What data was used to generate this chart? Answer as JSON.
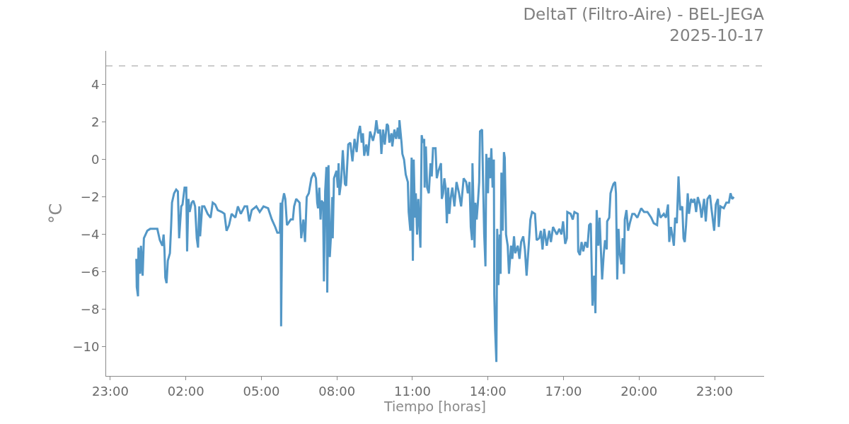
{
  "chart_data": {
    "type": "line",
    "title": "DeltaT (Filtro-Aire) - BEL-JEGA\n2025-10-17",
    "xlabel": "Tiempo [horas]",
    "ylabel": "°C",
    "x": [
      "2025-10-17T00:02",
      "2025-10-17T00:03",
      "2025-10-17T00:06",
      "2025-10-17T00:07",
      "2025-10-17T00:11",
      "2025-10-17T00:13",
      "2025-10-17T00:17",
      "2025-10-17T00:20",
      "2025-10-17T00:24",
      "2025-10-17T00:28",
      "2025-10-17T00:35",
      "2025-10-17T00:44",
      "2025-10-17T00:52",
      "2025-10-17T00:58",
      "2025-10-17T01:04",
      "2025-10-17T01:07",
      "2025-10-17T01:09",
      "2025-10-17T01:11",
      "2025-10-17T01:14",
      "2025-10-17T01:17",
      "2025-10-17T01:22",
      "2025-10-17T01:25",
      "2025-10-17T01:27",
      "2025-10-17T01:32",
      "2025-10-17T01:37",
      "2025-10-17T01:41",
      "2025-10-17T01:44",
      "2025-10-17T01:49",
      "2025-10-17T01:52",
      "2025-10-17T01:57",
      "2025-10-17T02:01",
      "2025-10-17T02:03",
      "2025-10-17T02:06",
      "2025-10-17T02:09",
      "2025-10-17T02:14",
      "2025-10-17T02:18",
      "2025-10-17T02:22",
      "2025-10-17T02:26",
      "2025-10-17T02:29",
      "2025-10-17T02:32",
      "2025-10-17T02:34",
      "2025-10-17T02:39",
      "2025-10-17T02:44",
      "2025-10-17T02:52",
      "2025-10-17T02:59",
      "2025-10-17T03:04",
      "2025-10-17T03:10",
      "2025-10-17T03:16",
      "2025-10-17T03:26",
      "2025-10-17T03:32",
      "2025-10-17T03:37",
      "2025-10-17T03:43",
      "2025-10-17T03:49",
      "2025-10-17T03:58",
      "2025-10-17T04:04",
      "2025-10-17T04:11",
      "2025-10-17T04:20",
      "2025-10-17T04:26",
      "2025-10-17T04:31",
      "2025-10-17T04:37",
      "2025-10-17T04:48",
      "2025-10-17T04:56",
      "2025-10-17T05:05",
      "2025-10-17T05:16",
      "2025-10-17T05:25",
      "2025-10-17T05:33",
      "2025-10-17T05:38",
      "2025-10-17T05:44",
      "2025-10-17T05:46",
      "2025-10-17T05:47",
      "2025-10-17T05:50",
      "2025-10-17T05:54",
      "2025-10-17T05:57",
      "2025-10-17T06:01",
      "2025-10-17T06:10",
      "2025-10-17T06:15",
      "2025-10-17T06:18",
      "2025-10-17T06:23",
      "2025-10-17T06:31",
      "2025-10-17T06:35",
      "2025-10-17T06:40",
      "2025-10-17T06:44",
      "2025-10-17T06:48",
      "2025-10-17T06:53",
      "2025-10-17T06:59",
      "2025-10-17T07:05",
      "2025-10-17T07:10",
      "2025-10-17T07:13",
      "2025-10-17T07:15",
      "2025-10-17T07:18",
      "2025-10-17T07:21",
      "2025-10-17T07:23",
      "2025-10-17T07:27",
      "2025-10-17T07:29",
      "2025-10-17T07:32",
      "2025-10-17T07:35",
      "2025-10-17T07:37",
      "2025-10-17T07:40",
      "2025-10-17T07:43",
      "2025-10-17T07:46",
      "2025-10-17T07:49",
      "2025-10-17T07:50",
      "2025-10-17T07:53",
      "2025-10-17T07:59",
      "2025-10-17T08:02",
      "2025-10-17T08:04",
      "2025-10-17T08:06",
      "2025-10-17T08:10",
      "2025-10-17T08:14",
      "2025-10-17T08:19",
      "2025-10-17T08:22",
      "2025-10-17T08:27",
      "2025-10-17T08:32",
      "2025-10-17T08:37",
      "2025-10-17T08:42",
      "2025-10-17T08:47",
      "2025-10-17T08:51",
      "2025-10-17T08:55",
      "2025-10-17T08:59",
      "2025-10-17T09:02",
      "2025-10-17T09:05",
      "2025-10-17T09:10",
      "2025-10-17T09:14",
      "2025-10-17T09:19",
      "2025-10-17T09:26",
      "2025-10-17T09:31",
      "2025-10-17T09:34",
      "2025-10-17T09:38",
      "2025-10-17T09:43",
      "2025-10-17T09:46",
      "2025-10-17T09:50",
      "2025-10-17T09:54",
      "2025-10-17T09:59",
      "2025-10-17T10:02",
      "2025-10-17T10:05",
      "2025-10-17T10:10",
      "2025-10-17T10:12",
      "2025-10-17T10:17",
      "2025-10-17T10:21",
      "2025-10-17T10:25",
      "2025-10-17T10:28",
      "2025-10-17T10:29",
      "2025-10-17T10:34",
      "2025-10-17T10:36",
      "2025-10-17T10:40",
      "2025-10-17T10:44",
      "2025-10-17T10:49",
      "2025-10-17T10:51",
      "2025-10-17T10:55",
      "2025-10-17T10:58",
      "2025-10-17T11:01",
      "2025-10-17T11:03",
      "2025-10-17T11:06",
      "2025-10-17T11:08",
      "2025-10-17T11:11",
      "2025-10-17T11:14",
      "2025-10-17T11:19",
      "2025-10-17T11:22",
      "2025-10-17T11:25",
      "2025-10-17T11:28",
      "2025-10-17T11:29",
      "2025-10-17T11:32",
      "2025-10-17T11:35",
      "2025-10-17T11:39",
      "2025-10-17T11:43",
      "2025-10-17T11:46",
      "2025-10-17T11:49",
      "2025-10-17T11:55",
      "2025-10-17T11:58",
      "2025-10-17T12:02",
      "2025-10-17T12:08",
      "2025-10-17T12:10",
      "2025-10-17T12:13",
      "2025-10-17T12:16",
      "2025-10-17T12:19",
      "2025-10-17T12:22",
      "2025-10-17T12:25",
      "2025-10-17T12:28",
      "2025-10-17T12:31",
      "2025-10-17T12:35",
      "2025-10-17T12:40",
      "2025-10-17T12:45",
      "2025-10-17T12:51",
      "2025-10-17T12:56",
      "2025-10-17T13:02",
      "2025-10-17T13:08",
      "2025-10-17T13:12",
      "2025-10-17T13:16",
      "2025-10-17T13:19",
      "2025-10-17T13:22",
      "2025-10-17T13:23",
      "2025-10-17T13:28",
      "2025-10-17T13:30",
      "2025-10-17T13:33",
      "2025-10-17T13:36",
      "2025-10-17T13:39",
      "2025-10-17T13:41",
      "2025-10-17T13:46",
      "2025-10-17T13:48",
      "2025-10-17T13:51",
      "2025-10-17T13:54",
      "2025-10-17T13:56",
      "2025-10-17T14:00",
      "2025-10-17T14:02",
      "2025-10-17T14:05",
      "2025-10-17T14:08",
      "2025-10-17T14:11",
      "2025-10-17T14:14",
      "2025-10-17T14:15",
      "2025-10-17T14:17",
      "2025-10-17T14:20",
      "2025-10-17T14:22",
      "2025-10-17T14:25",
      "2025-10-17T14:28",
      "2025-10-17T14:30",
      "2025-10-17T14:32",
      "2025-10-17T14:35",
      "2025-10-17T14:38",
      "2025-10-17T14:40",
      "2025-10-17T14:43",
      "2025-10-17T14:47",
      "2025-10-17T14:50",
      "2025-10-17T14:55",
      "2025-10-17T14:58",
      "2025-10-17T15:02",
      "2025-10-17T15:05",
      "2025-10-17T15:11",
      "2025-10-17T15:15",
      "2025-10-17T15:19",
      "2025-10-17T15:24",
      "2025-10-17T15:28",
      "2025-10-17T15:32",
      "2025-10-17T15:37",
      "2025-10-17T15:41",
      "2025-10-17T15:45",
      "2025-10-17T15:52",
      "2025-10-17T15:56",
      "2025-10-17T16:02",
      "2025-10-17T16:06",
      "2025-10-17T16:10",
      "2025-10-17T16:14",
      "2025-10-17T16:20",
      "2025-10-17T16:26",
      "2025-10-17T16:30",
      "2025-10-17T16:35",
      "2025-10-17T16:44",
      "2025-10-17T16:50",
      "2025-10-17T16:55",
      "2025-10-17T16:59",
      "2025-10-17T17:04",
      "2025-10-17T17:08",
      "2025-10-17T17:09",
      "2025-10-17T17:17",
      "2025-10-17T17:22",
      "2025-10-17T17:26",
      "2025-10-17T17:34",
      "2025-10-17T17:35",
      "2025-10-17T17:39",
      "2025-10-17T17:43",
      "2025-10-17T17:47",
      "2025-10-17T17:52",
      "2025-10-17T17:57",
      "2025-10-17T18:01",
      "2025-10-17T18:05",
      "2025-10-17T18:09",
      "2025-10-17T18:13",
      "2025-10-17T18:16",
      "2025-10-17T18:19",
      "2025-10-17T18:23",
      "2025-10-17T18:26",
      "2025-10-17T18:29",
      "2025-10-17T18:32",
      "2025-10-17T18:36",
      "2025-10-17T18:39",
      "2025-10-17T18:43",
      "2025-10-17T18:44",
      "2025-10-17T18:49",
      "2025-10-17T18:52",
      "2025-10-17T18:56",
      "2025-10-17T18:59",
      "2025-10-17T19:03",
      "2025-10-17T19:05",
      "2025-10-17T19:08",
      "2025-10-17T19:11",
      "2025-10-17T19:14",
      "2025-10-17T19:18",
      "2025-10-17T19:21",
      "2025-10-17T19:24",
      "2025-10-17T19:26",
      "2025-10-17T19:30",
      "2025-10-17T19:34",
      "2025-10-17T19:38",
      "2025-10-17T19:44",
      "2025-10-17T19:49",
      "2025-10-17T19:56",
      "2025-10-17T20:05",
      "2025-10-17T20:12",
      "2025-10-17T20:20",
      "2025-10-17T20:29",
      "2025-10-17T20:35",
      "2025-10-17T20:43",
      "2025-10-17T20:46",
      "2025-10-17T20:51",
      "2025-10-17T20:59",
      "2025-10-17T21:04",
      "2025-10-17T21:09",
      "2025-10-17T21:12",
      "2025-10-17T21:16",
      "2025-10-17T21:19",
      "2025-10-17T21:23",
      "2025-10-17T21:26",
      "2025-10-17T21:30",
      "2025-10-17T21:34",
      "2025-10-17T21:38",
      "2025-10-17T21:43",
      "2025-10-17T21:46",
      "2025-10-17T21:49",
      "2025-10-17T21:52",
      "2025-10-17T21:56",
      "2025-10-17T21:59",
      "2025-10-17T22:04",
      "2025-10-17T22:08",
      "2025-10-17T22:12",
      "2025-10-17T22:16",
      "2025-10-17T22:20",
      "2025-10-17T22:25",
      "2025-10-17T22:29",
      "2025-10-17T22:35",
      "2025-10-17T22:39",
      "2025-10-17T22:43",
      "2025-10-17T22:49",
      "2025-10-17T22:53",
      "2025-10-17T22:59",
      "2025-10-17T23:03",
      "2025-10-17T23:08",
      "2025-10-17T23:10",
      "2025-10-17T23:14",
      "2025-10-17T23:22",
      "2025-10-17T23:28",
      "2025-10-17T23:34",
      "2025-10-17T23:38",
      "2025-10-17T23:42",
      "2025-10-17T23:46"
    ],
    "series": [
      {
        "color": "#4a92c4",
        "values": [
          -5.3,
          -6.8,
          -7.3,
          -4.7,
          -6.1,
          -4.6,
          -6.2,
          -4.2,
          -4.0,
          -3.8,
          -3.7,
          -3.7,
          -3.7,
          -4.3,
          -4.6,
          -4.0,
          -4.8,
          -6.3,
          -6.6,
          -5.4,
          -5.0,
          -3.5,
          -2.3,
          -1.8,
          -1.6,
          -1.7,
          -4.2,
          -2.5,
          -2.4,
          -1.5,
          -1.5,
          -4.9,
          -2.1,
          -2.8,
          -2.3,
          -2.2,
          -2.5,
          -4.2,
          -4.7,
          -2.5,
          -4.1,
          -2.5,
          -2.5,
          -2.9,
          -3.1,
          -2.3,
          -2.4,
          -2.7,
          -2.8,
          -2.9,
          -3.8,
          -3.5,
          -2.9,
          -3.1,
          -2.5,
          -2.9,
          -2.5,
          -2.5,
          -3.3,
          -2.7,
          -2.5,
          -2.8,
          -2.5,
          -2.6,
          -3.2,
          -3.6,
          -3.9,
          -3.9,
          -2.3,
          -8.9,
          -2.3,
          -1.8,
          -2.1,
          -3.5,
          -3.2,
          -3.2,
          -2.5,
          -2.1,
          -2.3,
          -4.2,
          -3.2,
          -4.4,
          -2.0,
          -1.8,
          -1.0,
          -0.7,
          -1.0,
          -2.3,
          -2.6,
          -1.5,
          -3.2,
          -2.2,
          -2.3,
          -6.5,
          -1.7,
          -0.4,
          -7.1,
          -0.3,
          -5.2,
          -4.0,
          -2.0,
          -4.2,
          -1.0,
          -0.6,
          -1.5,
          -0.2,
          -1.9,
          -1.2,
          0.5,
          -1.3,
          -1.4,
          0.8,
          0.9,
          -0.1,
          1.1,
          0.4,
          1.4,
          1.8,
          0.9,
          1.4,
          0.2,
          0.8,
          0.2,
          1.5,
          1.0,
          1.5,
          2.1,
          1.4,
          1.6,
          0.3,
          1.6,
          0.8,
          1.9,
          1.8,
          0.9,
          1.4,
          0.7,
          1.6,
          1.1,
          1.7,
          1.1,
          2.1,
          0.9,
          0.3,
          0.0,
          -0.8,
          -1.2,
          -2.8,
          -3.8,
          0.1,
          -5.4,
          0.0,
          -3.1,
          -1.8,
          -4.0,
          -2.1,
          -4.7,
          1.3,
          0.9,
          1.1,
          -1.5,
          0.7,
          -1.5,
          -1.8,
          -0.2,
          -0.9,
          0.6,
          0.6,
          -1.0,
          -0.6,
          -0.2,
          -2.1,
          -1.8,
          -1.0,
          -1.5,
          -3.4,
          -1.5,
          -2.9,
          -2.1,
          -1.5,
          -2.5,
          -1.2,
          -1.8,
          -2.5,
          -1.0,
          -1.2,
          -1.8,
          -1.2,
          -3.6,
          -4.3,
          -0.2,
          -4.7,
          -2.3,
          -3.2,
          -2.3,
          -1.2,
          1.5,
          1.6,
          -0.9,
          -4.0,
          -5.7,
          0.3,
          -1.8,
          0.1,
          -1.0,
          0.6,
          -1.5,
          0.0,
          -7.2,
          -9.1,
          -10.8,
          -3.7,
          -6.7,
          -4.0,
          -6.1,
          -0.7,
          -3.8,
          0.4,
          0.1,
          -4.0,
          -4.6,
          -6.1,
          -4.6,
          -5.3,
          -4.1,
          -5.0,
          -4.6,
          -5.3,
          -4.4,
          -4.1,
          -4.8,
          -6.2,
          -4.6,
          -3.2,
          -2.8,
          -2.9,
          -4.3,
          -4.2,
          -3.8,
          -4.8,
          -3.7,
          -4.6,
          -3.8,
          -4.4,
          -3.6,
          -4.0,
          -3.7,
          -4.0,
          -3.3,
          -4.5,
          -4.2,
          -2.8,
          -2.9,
          -3.2,
          -2.8,
          -2.9,
          -4.9,
          -5.1,
          -4.4,
          -4.9,
          -4.4,
          -4.7,
          -3.5,
          -3.4,
          -7.8,
          -6.2,
          -8.2,
          -2.7,
          -4.6,
          -3.1,
          -4.8,
          -6.4,
          -5.0,
          -4.3,
          -4.8,
          -3.3,
          -3.1,
          -1.8,
          -1.5,
          -1.3,
          -1.2,
          -1.8,
          -6.4,
          -3.7,
          -5.0,
          -5.6,
          -4.2,
          -6.1,
          -3.2,
          -2.7,
          -3.8,
          -3.4,
          -2.9,
          -2.9,
          -3.1,
          -2.6,
          -2.8,
          -2.8,
          -3.1,
          -3.4,
          -3.5,
          -2.6,
          -3.1,
          -2.9,
          -3.1,
          -2.4,
          -4.4,
          -3.6,
          -4.0,
          -4.6,
          -3.1,
          -3.4,
          -0.9,
          -2.7,
          -2.5,
          -4.2,
          -4.4,
          -3.5,
          -1.8,
          -2.9,
          -2.1,
          -2.3,
          -2.1,
          -2.8,
          -2.0,
          -2.4,
          -3.1,
          -2.1,
          -3.3,
          -2.1,
          -1.9,
          -2.7,
          -3.8,
          -2.4,
          -2.1,
          -3.6,
          -2.5,
          -2.6,
          -2.3,
          -2.3,
          -1.8,
          -2.1,
          -2.0
        ]
      }
    ],
    "xlim": [
      "2025-10-16T22:50",
      "2025-10-18T00:58"
    ],
    "xticks": [
      {
        "value": "2025-10-16T23:00",
        "label": "23:00"
      },
      {
        "value": "2025-10-17T02:00",
        "label": "02:00"
      },
      {
        "value": "2025-10-17T05:00",
        "label": "05:00"
      },
      {
        "value": "2025-10-17T08:00",
        "label": "08:00"
      },
      {
        "value": "2025-10-17T11:00",
        "label": "11:00"
      },
      {
        "value": "2025-10-17T14:00",
        "label": "14:00"
      },
      {
        "value": "2025-10-17T17:00",
        "label": "17:00"
      },
      {
        "value": "2025-10-17T20:00",
        "label": "20:00"
      },
      {
        "value": "2025-10-17T23:00",
        "label": "23:00"
      }
    ],
    "ylim": [
      -11.55,
      5.8
    ],
    "yticks": [
      {
        "value": -10,
        "label": "−10"
      },
      {
        "value": -8,
        "label": "−8"
      },
      {
        "value": -6,
        "label": "−6"
      },
      {
        "value": -4,
        "label": "−4"
      },
      {
        "value": -2,
        "label": "−2"
      },
      {
        "value": 0,
        "label": "0"
      },
      {
        "value": 2,
        "label": "2"
      },
      {
        "value": 4,
        "label": "4"
      }
    ],
    "ref_lines": [
      {
        "axis": "y",
        "value": 5,
        "color": "#bbbbbb",
        "line_style": "dashed"
      }
    ]
  }
}
